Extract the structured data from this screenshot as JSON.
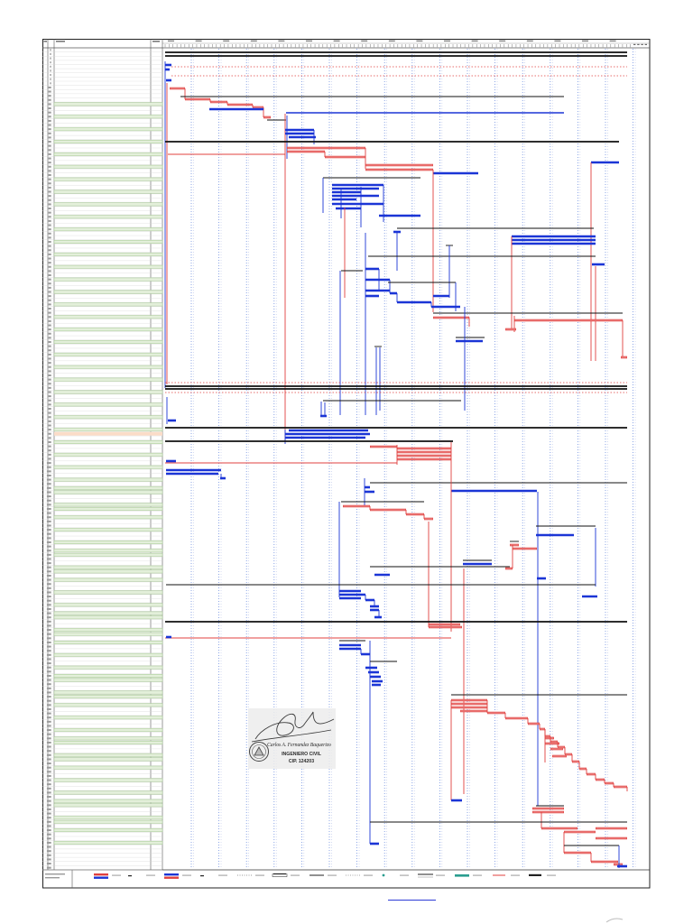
{
  "stamp": {
    "name": "Carlos A. Fernandez Baquerizo",
    "title": "INGENIERO CIVIL",
    "registration": "CIP. 124203"
  },
  "colors": {
    "summary": "#111111",
    "task": "#1b35d6",
    "critical": "#e0403f",
    "critical_fill": "#f6b3b3",
    "grid": "#6f8fe0",
    "row_line": "#d6d6d6",
    "row_highlight": "#e3efda",
    "row_highlight_border": "#a3c790",
    "row_warning": "#fbdcc8",
    "milestone_teal": "#2a9d8f"
  },
  "icons": {
    "seal": "engineer-seal-icon",
    "signature": "signature-icon"
  }
}
